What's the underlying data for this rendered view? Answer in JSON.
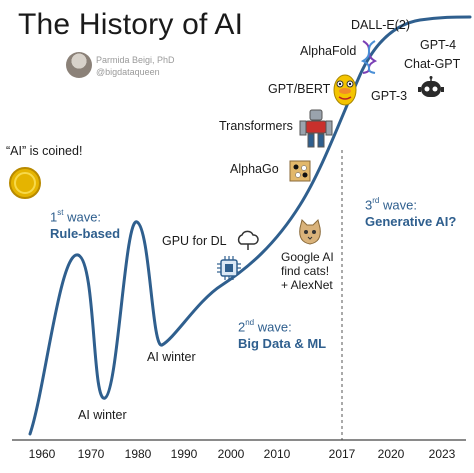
{
  "header": {
    "title": "The History of AI",
    "author_name": "Parmida Beigi, PhD",
    "author_handle": "@bigdataqueen"
  },
  "events": {
    "ai_coined": "“AI” is coined!",
    "ai_winter_1": "AI winter",
    "ai_winter_2": "AI winter",
    "gpu": "GPU for DL",
    "google_cats": [
      "Google AI",
      "find cats!",
      "+ AlexNet"
    ],
    "alphago": "AlphaGo",
    "transformers": "Transformers",
    "gpt_bert": "GPT/BERT",
    "alphafold": "AlphaFold",
    "dalle": "DALL-E(2)",
    "gpt3": "GPT-3",
    "gpt4": "GPT-4",
    "chatgpt": "Chat-GPT"
  },
  "waves": [
    {
      "num": "1",
      "suffix": "st",
      "word": " wave:",
      "name": "Rule-based"
    },
    {
      "num": "2",
      "suffix": "nd",
      "word": " wave:",
      "name": "Big Data & ML"
    },
    {
      "num": "3",
      "suffix": "rd",
      "word": " wave:",
      "name": "Generative AI?"
    }
  ],
  "axis": {
    "years": [
      "1960",
      "1970",
      "1980",
      "1990",
      "2000",
      "2010",
      "2017",
      "2020",
      "2023"
    ]
  },
  "colors": {
    "curve": "#2f5f8e",
    "wave_text": "#2f5f8e",
    "gold": "#e5b400"
  },
  "icons": [
    "coin-icon",
    "cloud-chip-icon",
    "cat-icon",
    "go-board-icon",
    "robot-icon",
    "bird-icon",
    "dna-icon",
    "bot-face-icon"
  ]
}
